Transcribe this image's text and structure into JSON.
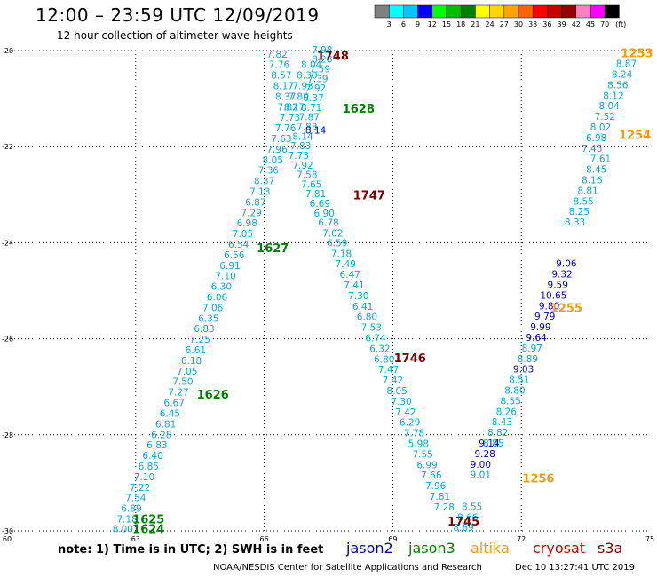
{
  "header": {
    "title": "12:00 – 23:59 UTC 12/09/2019",
    "subtitle": "12 hour collection of altimeter wave heights"
  },
  "colorbar": {
    "unit": "(ft)",
    "ticks": [
      "3",
      "6",
      "9",
      "12",
      "15",
      "18",
      "21",
      "24",
      "27",
      "30",
      "33",
      "36",
      "39",
      "42",
      "45",
      "70"
    ],
    "colors": [
      "#808080",
      "#00ffff",
      "#00c8ff",
      "#0000ff",
      "#00ff00",
      "#00c000",
      "#008000",
      "#ffff00",
      "#ffd700",
      "#ffa500",
      "#ff6400",
      "#ff0000",
      "#c80000",
      "#960000",
      "#ff80c0",
      "#ff00ff",
      "#000000"
    ]
  },
  "chart_data": {
    "type": "scatter",
    "xlim": [
      60,
      75
    ],
    "ylim": [
      -30,
      -20
    ],
    "xticks": [
      "60",
      "63",
      "66",
      "69",
      "72",
      "75"
    ],
    "yticks": [
      "-20",
      "-22",
      "-24",
      "-26",
      "-28",
      "-30"
    ],
    "grid": true,
    "series": [
      {
        "name": "jason3",
        "color": "#00aadd",
        "labels": [
          {
            "x": 62.7,
            "y": -29.95,
            "v": "8.00"
          },
          {
            "x": 62.8,
            "y": -29.75,
            "v": "7.18"
          },
          {
            "x": 62.9,
            "y": -29.53,
            "v": "6.89"
          },
          {
            "x": 63.0,
            "y": -29.31,
            "v": "7.54"
          },
          {
            "x": 63.1,
            "y": -29.09,
            "v": "7.22"
          },
          {
            "x": 63.2,
            "y": -28.87,
            "v": "7.10"
          },
          {
            "x": 63.3,
            "y": -28.65,
            "v": "6.85"
          },
          {
            "x": 63.4,
            "y": -28.43,
            "v": "6.40"
          },
          {
            "x": 63.5,
            "y": -28.21,
            "v": "6.83"
          },
          {
            "x": 63.6,
            "y": -27.99,
            "v": "6.28"
          },
          {
            "x": 63.7,
            "y": -27.77,
            "v": "6.81"
          },
          {
            "x": 63.8,
            "y": -27.55,
            "v": "6.45"
          },
          {
            "x": 63.9,
            "y": -27.33,
            "v": "6.67"
          },
          {
            "x": 64.0,
            "y": -27.11,
            "v": "7.27"
          },
          {
            "x": 64.1,
            "y": -26.89,
            "v": "7.50"
          },
          {
            "x": 64.2,
            "y": -26.67,
            "v": "7.05"
          },
          {
            "x": 64.3,
            "y": -26.45,
            "v": "6.18"
          },
          {
            "x": 64.4,
            "y": -26.23,
            "v": "6.61"
          },
          {
            "x": 64.5,
            "y": -26.01,
            "v": "7.25"
          },
          {
            "x": 64.6,
            "y": -25.79,
            "v": "6.83"
          },
          {
            "x": 64.7,
            "y": -25.57,
            "v": "6.35"
          },
          {
            "x": 64.8,
            "y": -25.35,
            "v": "7.06"
          },
          {
            "x": 64.9,
            "y": -25.13,
            "v": "6.06"
          },
          {
            "x": 65.0,
            "y": -24.91,
            "v": "6.30"
          },
          {
            "x": 65.1,
            "y": -24.69,
            "v": "7.10"
          },
          {
            "x": 65.2,
            "y": -24.47,
            "v": "6.91"
          },
          {
            "x": 65.3,
            "y": -24.25,
            "v": "6.56"
          },
          {
            "x": 65.4,
            "y": -24.03,
            "v": "6.54"
          },
          {
            "x": 65.5,
            "y": -23.81,
            "v": "7.05"
          },
          {
            "x": 65.6,
            "y": -23.59,
            "v": "6.98"
          },
          {
            "x": 65.7,
            "y": -23.37,
            "v": "7.29"
          },
          {
            "x": 65.8,
            "y": -23.15,
            "v": "6.87"
          },
          {
            "x": 65.9,
            "y": -22.93,
            "v": "7.13"
          },
          {
            "x": 66.0,
            "y": -22.71,
            "v": "8.37"
          },
          {
            "x": 66.1,
            "y": -22.49,
            "v": "7.36"
          },
          {
            "x": 66.2,
            "y": -22.27,
            "v": "8.05"
          },
          {
            "x": 66.3,
            "y": -22.05,
            "v": "7.96"
          },
          {
            "x": 66.4,
            "y": -21.83,
            "v": "7.63"
          },
          {
            "x": 66.5,
            "y": -21.61,
            "v": "7.76"
          },
          {
            "x": 66.6,
            "y": -21.39,
            "v": "7.73"
          },
          {
            "x": 66.7,
            "y": -21.17,
            "v": "8.17"
          },
          {
            "x": 66.8,
            "y": -20.95,
            "v": "7.80"
          },
          {
            "x": 66.9,
            "y": -20.73,
            "v": "7.93"
          },
          {
            "x": 67.0,
            "y": -20.51,
            "v": "8.30"
          },
          {
            "x": 67.1,
            "y": -20.29,
            "v": "8.04"
          },
          {
            "x": 66.3,
            "y": -20.07,
            "v": "7.82"
          },
          {
            "x": 66.35,
            "y": -20.29,
            "v": "7.76"
          },
          {
            "x": 66.4,
            "y": -20.51,
            "v": "8.57"
          },
          {
            "x": 66.45,
            "y": -20.73,
            "v": "8.17"
          },
          {
            "x": 66.5,
            "y": -20.95,
            "v": "8.37"
          },
          {
            "x": 66.55,
            "y": -21.17,
            "v": "7.82"
          },
          {
            "x": 67.35,
            "y": -19.98,
            "v": "7.98"
          },
          {
            "x": 67.35,
            "y": -20.18,
            "v": "8.28"
          },
          {
            "x": 67.3,
            "y": -20.38,
            "v": "7.59"
          },
          {
            "x": 67.25,
            "y": -20.58,
            "v": "7.39"
          },
          {
            "x": 67.2,
            "y": -20.78,
            "v": "7.92"
          },
          {
            "x": 67.15,
            "y": -20.98,
            "v": "8.37"
          },
          {
            "x": 67.1,
            "y": -21.18,
            "v": "8.71"
          },
          {
            "x": 67.05,
            "y": -21.38,
            "v": "7.87"
          },
          {
            "x": 67.0,
            "y": -21.58,
            "v": "7.83"
          },
          {
            "x": 66.9,
            "y": -21.78,
            "v": "8.14"
          },
          {
            "x": 66.85,
            "y": -21.98,
            "v": "7.83"
          },
          {
            "x": 66.8,
            "y": -22.18,
            "v": "7.73"
          },
          {
            "x": 66.9,
            "y": -22.38,
            "v": "7.92"
          },
          {
            "x": 67.0,
            "y": -22.58,
            "v": "7.58"
          },
          {
            "x": 67.1,
            "y": -22.78,
            "v": "7.65"
          },
          {
            "x": 67.2,
            "y": -22.98,
            "v": "7.81"
          },
          {
            "x": 67.3,
            "y": -23.18,
            "v": "6.69"
          },
          {
            "x": 67.4,
            "y": -23.38,
            "v": "6.90"
          },
          {
            "x": 67.5,
            "y": -23.58,
            "v": "6.78"
          },
          {
            "x": 67.6,
            "y": -23.8,
            "v": "7.02"
          },
          {
            "x": 67.7,
            "y": -24.0,
            "v": "6.59"
          },
          {
            "x": 67.8,
            "y": -24.22,
            "v": "7.18"
          },
          {
            "x": 67.9,
            "y": -24.44,
            "v": "7.49"
          },
          {
            "x": 68.0,
            "y": -24.66,
            "v": "6.47"
          },
          {
            "x": 68.1,
            "y": -24.88,
            "v": "7.41"
          },
          {
            "x": 68.2,
            "y": -25.1,
            "v": "7.30"
          },
          {
            "x": 68.3,
            "y": -25.32,
            "v": "6.41"
          },
          {
            "x": 68.4,
            "y": -25.54,
            "v": "6.80"
          },
          {
            "x": 68.5,
            "y": -25.76,
            "v": "7.53"
          },
          {
            "x": 68.6,
            "y": -25.98,
            "v": "6.74"
          },
          {
            "x": 68.7,
            "y": -26.2,
            "v": "6.32"
          },
          {
            "x": 68.8,
            "y": -26.42,
            "v": "6.80"
          },
          {
            "x": 68.9,
            "y": -26.64,
            "v": "7.47"
          },
          {
            "x": 69.0,
            "y": -26.86,
            "v": "7.42"
          },
          {
            "x": 69.1,
            "y": -27.08,
            "v": "8.05"
          },
          {
            "x": 69.2,
            "y": -27.3,
            "v": "7.30"
          },
          {
            "x": 69.3,
            "y": -27.52,
            "v": "7.42"
          },
          {
            "x": 69.4,
            "y": -27.74,
            "v": "6.29"
          },
          {
            "x": 69.5,
            "y": -27.96,
            "v": "7.78"
          },
          {
            "x": 69.6,
            "y": -28.18,
            "v": "5.98"
          },
          {
            "x": 69.7,
            "y": -28.4,
            "v": "7.55"
          },
          {
            "x": 69.8,
            "y": -28.62,
            "v": "6.99"
          },
          {
            "x": 69.9,
            "y": -28.84,
            "v": "7.66"
          },
          {
            "x": 70.0,
            "y": -29.06,
            "v": "7.96"
          },
          {
            "x": 70.1,
            "y": -29.28,
            "v": "7.81"
          },
          {
            "x": 70.2,
            "y": -29.5,
            "v": "7.28"
          },
          {
            "x": 70.65,
            "y": -29.93,
            "v": "8.69"
          },
          {
            "x": 70.75,
            "y": -29.71,
            "v": "8.66"
          },
          {
            "x": 70.85,
            "y": -29.49,
            "v": "8.55"
          },
          {
            "x": 71.05,
            "y": -28.83,
            "v": "9.01"
          },
          {
            "x": 71.35,
            "y": -28.17,
            "v": "8.85"
          },
          {
            "x": 71.45,
            "y": -27.95,
            "v": "8.82"
          },
          {
            "x": 71.55,
            "y": -27.73,
            "v": "8.43"
          },
          {
            "x": 71.65,
            "y": -27.51,
            "v": "8.26"
          },
          {
            "x": 71.75,
            "y": -27.29,
            "v": "8.55"
          },
          {
            "x": 71.85,
            "y": -27.07,
            "v": "8.80"
          },
          {
            "x": 71.95,
            "y": -26.85,
            "v": "8.51"
          },
          {
            "x": 72.15,
            "y": -26.41,
            "v": "8.89"
          },
          {
            "x": 72.25,
            "y": -26.19,
            "v": "8.97"
          },
          {
            "x": 73.25,
            "y": -23.57,
            "v": "8.33"
          },
          {
            "x": 73.35,
            "y": -23.35,
            "v": "8.25"
          },
          {
            "x": 73.45,
            "y": -23.13,
            "v": "8.55"
          },
          {
            "x": 73.55,
            "y": -22.91,
            "v": "8.81"
          },
          {
            "x": 73.65,
            "y": -22.69,
            "v": "8.16"
          },
          {
            "x": 73.75,
            "y": -22.47,
            "v": "8.45"
          },
          {
            "x": 73.85,
            "y": -22.25,
            "v": "7.61"
          },
          {
            "x": 73.65,
            "y": -22.03,
            "v": "7.45"
          },
          {
            "x": 73.75,
            "y": -21.81,
            "v": "6.98"
          },
          {
            "x": 73.85,
            "y": -21.59,
            "v": "8.02"
          },
          {
            "x": 73.95,
            "y": -21.37,
            "v": "7.52"
          },
          {
            "x": 74.05,
            "y": -21.15,
            "v": "8.04"
          },
          {
            "x": 74.15,
            "y": -20.93,
            "v": "8.12"
          },
          {
            "x": 74.25,
            "y": -20.71,
            "v": "8.56"
          },
          {
            "x": 74.35,
            "y": -20.49,
            "v": "8.24"
          },
          {
            "x": 74.45,
            "y": -20.27,
            "v": "8.87"
          }
        ]
      },
      {
        "name": "jason2",
        "color": "#0000c8",
        "labels": [
          {
            "x": 67.2,
            "y": -21.65,
            "v": "8.14"
          },
          {
            "x": 71.05,
            "y": -28.61,
            "v": "9.00"
          },
          {
            "x": 71.15,
            "y": -28.39,
            "v": "9.28"
          },
          {
            "x": 71.25,
            "y": -28.17,
            "v": "9.14"
          },
          {
            "x": 72.05,
            "y": -26.63,
            "v": "9.03"
          },
          {
            "x": 72.35,
            "y": -25.97,
            "v": "9.64"
          },
          {
            "x": 72.45,
            "y": -25.75,
            "v": "9.99"
          },
          {
            "x": 72.55,
            "y": -25.53,
            "v": "9.79"
          },
          {
            "x": 72.65,
            "y": -25.31,
            "v": "9.80"
          },
          {
            "x": 72.75,
            "y": -25.09,
            "v": "10.65"
          },
          {
            "x": 72.85,
            "y": -24.87,
            "v": "9.59"
          },
          {
            "x": 72.95,
            "y": -24.65,
            "v": "9.32"
          },
          {
            "x": 73.05,
            "y": -24.43,
            "v": "9.06"
          }
        ]
      }
    ],
    "track_times": [
      {
        "x": 67.6,
        "y": -20.1,
        "t": "1748",
        "color": "#800000"
      },
      {
        "x": 68.2,
        "y": -21.2,
        "t": "1628",
        "color": "#008000"
      },
      {
        "x": 68.45,
        "y": -23.0,
        "t": "1747",
        "color": "#800000"
      },
      {
        "x": 66.2,
        "y": -24.1,
        "t": "1627",
        "color": "#008000"
      },
      {
        "x": 69.4,
        "y": -26.4,
        "t": "1746",
        "color": "#800000"
      },
      {
        "x": 64.8,
        "y": -27.15,
        "t": "1626",
        "color": "#008000"
      },
      {
        "x": 63.3,
        "y": -29.75,
        "t": "1625",
        "color": "#008000"
      },
      {
        "x": 63.3,
        "y": -29.95,
        "t": "1624",
        "color": "#008000"
      },
      {
        "x": 70.65,
        "y": -29.8,
        "t": "1745",
        "color": "#800000"
      },
      {
        "x": 74.7,
        "y": -20.05,
        "t": "1253",
        "color": "#ff9900"
      },
      {
        "x": 74.65,
        "y": -21.75,
        "t": "1254",
        "color": "#ff9900"
      },
      {
        "x": 73.05,
        "y": -25.35,
        "t": "1255",
        "color": "#ff9900"
      },
      {
        "x": 72.4,
        "y": -28.9,
        "t": "1256",
        "color": "#ff9900"
      }
    ]
  },
  "note": "note: 1) Time is in UTC; 2) SWH is in feet",
  "satellites": [
    {
      "name": "jason2",
      "color": "#0000c8"
    },
    {
      "name": "jason3",
      "color": "#008000"
    },
    {
      "name": "altika",
      "color": "#ff9900"
    },
    {
      "name": "cryosat",
      "color": "#cc0000"
    },
    {
      "name": "s3a",
      "color": "#800000"
    }
  ],
  "footer": "NOAA/NESDIS Center for Satellite Applications and Research",
  "stamp": "Dec 10 13:27:41 UTC 2019"
}
